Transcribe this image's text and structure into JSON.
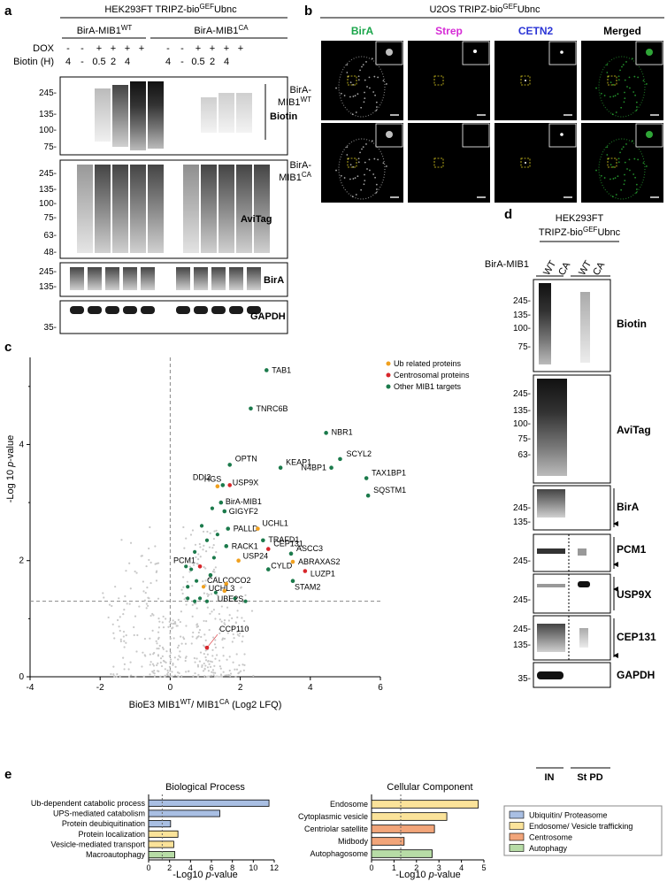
{
  "panels": {
    "a": {
      "letter": "a",
      "title_main": "HEK293FT TRIPZ-bio",
      "title_sup": "GEF",
      "title_end": "Ubnc",
      "group_wt_main": "BirA-MIB1",
      "group_wt_sup": "WT",
      "group_ca_main": "BirA-MIB1",
      "group_ca_sup": "CA",
      "row_dox_label": "DOX",
      "row_biotin_label": "Biotin (H)",
      "dox_values": [
        "-",
        "-",
        "+",
        "+",
        "+",
        "+",
        "-",
        "-",
        "+",
        "+",
        "+",
        "+"
      ],
      "biotin_values": [
        "4",
        "-",
        "0.5",
        "2",
        "4",
        "",
        "4",
        "-",
        "0.5",
        "2",
        "4",
        ""
      ],
      "blots": [
        {
          "name": "Biotin",
          "ticks": [
            "245-",
            "135-",
            "100-",
            "75-"
          ]
        },
        {
          "name": "AviTag",
          "ticks": [
            "245-",
            "135-",
            "100-",
            "75-",
            "63-",
            "48-"
          ]
        },
        {
          "name": "BirA",
          "ticks": [
            "245-",
            "135-"
          ]
        },
        {
          "name": "GAPDH",
          "ticks": [
            "35-"
          ]
        }
      ]
    },
    "b": {
      "letter": "b",
      "title_main": "U2OS TRIPZ-bio",
      "title_sup": "GEF",
      "title_end": "Ubnc",
      "channels": [
        {
          "name": "BirA",
          "color": "#1aa54a"
        },
        {
          "name": "Strep",
          "color": "#d62bd6"
        },
        {
          "name": "CETN2",
          "color": "#2b35d6"
        },
        {
          "name": "Merged",
          "color": "#000000"
        }
      ],
      "row_wt_main": "BirA-",
      "row_wt_sub": "MIB1",
      "row_wt_sup": "WT",
      "row_ca_main": "BirA-",
      "row_ca_sub": "MIB1",
      "row_ca_sup": "CA"
    },
    "c": {
      "letter": "c",
      "ylabel_main": "-Log 10 ",
      "ylabel_ital": "p",
      "ylabel_end": "-value",
      "xlabel_main": "BioE3 MIB1",
      "xlabel_sup1": "WT",
      "xlabel_mid": "/ MIB1",
      "xlabel_sup2": "CA",
      "xlabel_end": " (Log2 LFQ)",
      "legend": [
        {
          "label": "Ub related proteins",
          "color": "#f0a01e"
        },
        {
          "label": "Centrosomal proteins",
          "color": "#d8262b"
        },
        {
          "label": "Other MIB1 targets",
          "color": "#1b7a4b"
        }
      ]
    },
    "d": {
      "letter": "d",
      "title_line1": "HEK293FT",
      "title_main": "TRIPZ-bio",
      "title_sup": "GEF",
      "title_end": "Ubnc",
      "bira_label": "BirA-MIB1",
      "lane_labels": [
        "WT",
        "CA",
        "WT",
        "CA"
      ],
      "bottom_labels": [
        "IN",
        "St PD"
      ],
      "blots": [
        {
          "name": "Biotin",
          "ticks": [
            "245-",
            "135-",
            "100-",
            "75-"
          ]
        },
        {
          "name": "AviTag",
          "ticks": [
            "245-",
            "135-",
            "100-",
            "75-",
            "63-"
          ]
        },
        {
          "name": "BirA",
          "ticks": [
            "245-",
            "135-"
          ]
        },
        {
          "name": "PCM1",
          "ticks": [
            "245-"
          ]
        },
        {
          "name": "USP9X",
          "ticks": [
            "245-"
          ]
        },
        {
          "name": "CEP131",
          "ticks": [
            "245-",
            "135-"
          ]
        },
        {
          "name": "GAPDH",
          "ticks": [
            "35-"
          ]
        }
      ]
    },
    "e": {
      "letter": "e",
      "bp_title": "Biological Process",
      "cc_title": "Cellular Component",
      "xlabel_main": "-Log10 ",
      "xlabel_ital": "p",
      "xlabel_end": "-value",
      "legend": [
        {
          "label": "Ubiquitin/ Proteasome",
          "color": "#a9bfe3"
        },
        {
          "label": "Endosome/ Vesicle trafficking",
          "color": "#fbe39a"
        },
        {
          "label": "Centrosome",
          "color": "#f2a57a"
        },
        {
          "label": "Autophagy",
          "color": "#b7dca6"
        }
      ]
    }
  },
  "chart_data": [
    {
      "type": "scatter",
      "panel": "c",
      "xlim": [
        -4,
        6
      ],
      "ylim": [
        0,
        5.5
      ],
      "x_ticks": [
        "-4",
        "-2",
        "0",
        "2",
        "4",
        "6"
      ],
      "y_ticks": [
        "0",
        "2",
        "4"
      ],
      "threshold_y": 1.3,
      "vline_x": 0,
      "labeled_points": [
        {
          "label": "TAB1",
          "x": 2.75,
          "y": 5.28,
          "color": "#1b7a4b"
        },
        {
          "label": "TNRC6B",
          "x": 2.3,
          "y": 4.62,
          "color": "#1b7a4b"
        },
        {
          "label": "NBR1",
          "x": 4.45,
          "y": 4.2,
          "color": "#1b7a4b"
        },
        {
          "label": "KEAP1",
          "x": 3.15,
          "y": 3.6,
          "color": "#1b7a4b"
        },
        {
          "label": "SCYL2",
          "x": 4.85,
          "y": 3.75,
          "color": "#1b7a4b"
        },
        {
          "label": "N4BP1",
          "x": 4.6,
          "y": 3.6,
          "color": "#1b7a4b"
        },
        {
          "label": "TAX1BP1",
          "x": 5.6,
          "y": 3.42,
          "color": "#1b7a4b"
        },
        {
          "label": "SQSTM1",
          "x": 5.65,
          "y": 3.12,
          "color": "#1b7a4b"
        },
        {
          "label": "OPTN",
          "x": 1.7,
          "y": 3.65,
          "color": "#1b7a4b"
        },
        {
          "label": "HGS",
          "x": 1.5,
          "y": 3.3,
          "color": "#1b7a4b"
        },
        {
          "label": "USP9X",
          "x": 1.7,
          "y": 3.3,
          "color": "#d8262b"
        },
        {
          "label": "DDI2",
          "x": 1.35,
          "y": 3.28,
          "color": "#f0a01e"
        },
        {
          "label": "BirA-MIB1",
          "x": 1.45,
          "y": 3.0,
          "color": "#1b7a4b"
        },
        {
          "label": "GIGYF2",
          "x": 1.55,
          "y": 2.85,
          "color": "#1b7a4b"
        },
        {
          "label": "PALLD",
          "x": 1.65,
          "y": 2.55,
          "color": "#1b7a4b"
        },
        {
          "label": "UCHL1",
          "x": 2.5,
          "y": 2.55,
          "color": "#f0a01e"
        },
        {
          "label": "TRAFD1",
          "x": 2.65,
          "y": 2.35,
          "color": "#1b7a4b"
        },
        {
          "label": "CEP131",
          "x": 2.8,
          "y": 2.2,
          "color": "#d8262b"
        },
        {
          "label": "RACK1",
          "x": 1.6,
          "y": 2.25,
          "color": "#1b7a4b"
        },
        {
          "label": "USP24",
          "x": 1.95,
          "y": 2.0,
          "color": "#f0a01e"
        },
        {
          "label": "PCM1",
          "x": 0.85,
          "y": 1.9,
          "color": "#d8262b"
        },
        {
          "label": "CALCOCO2",
          "x": 1.15,
          "y": 1.75,
          "color": "#1b7a4b"
        },
        {
          "label": "ASCC3",
          "x": 3.45,
          "y": 2.12,
          "color": "#1b7a4b"
        },
        {
          "label": "ABRAXAS2",
          "x": 3.5,
          "y": 1.98,
          "color": "#f0a01e"
        },
        {
          "label": "CYLD",
          "x": 2.8,
          "y": 1.85,
          "color": "#1b7a4b"
        },
        {
          "label": "LUZP1",
          "x": 3.85,
          "y": 1.82,
          "color": "#d8262b"
        },
        {
          "label": "STAM2",
          "x": 3.5,
          "y": 1.65,
          "color": "#1b7a4b"
        },
        {
          "label": "UCHL3",
          "x": 1.6,
          "y": 1.6,
          "color": "#f0a01e"
        },
        {
          "label": "UBE2S",
          "x": 1.55,
          "y": 1.48,
          "color": "#f0a01e"
        },
        {
          "label": "CCP110",
          "x": 1.05,
          "y": 0.5,
          "color": "#d8262b"
        }
      ],
      "unlabeled_sig_points": [
        {
          "x": 0.7,
          "y": 2.15,
          "color": "#1b7a4b"
        },
        {
          "x": 0.9,
          "y": 2.6,
          "color": "#1b7a4b"
        },
        {
          "x": 1.05,
          "y": 2.35,
          "color": "#1b7a4b"
        },
        {
          "x": 1.25,
          "y": 2.05,
          "color": "#1b7a4b"
        },
        {
          "x": 0.6,
          "y": 1.85,
          "color": "#1b7a4b"
        },
        {
          "x": 0.45,
          "y": 1.9,
          "color": "#1b7a4b"
        },
        {
          "x": 0.75,
          "y": 1.65,
          "color": "#1b7a4b"
        },
        {
          "x": 0.95,
          "y": 1.55,
          "color": "#f0a01e"
        },
        {
          "x": 0.5,
          "y": 1.55,
          "color": "#1b7a4b"
        },
        {
          "x": 0.5,
          "y": 1.35,
          "color": "#1b7a4b"
        },
        {
          "x": 0.85,
          "y": 1.35,
          "color": "#1b7a4b"
        },
        {
          "x": 1.05,
          "y": 1.3,
          "color": "#1b7a4b"
        },
        {
          "x": 1.3,
          "y": 1.45,
          "color": "#1b7a4b"
        },
        {
          "x": 1.85,
          "y": 1.35,
          "color": "#1b7a4b"
        },
        {
          "x": 2.15,
          "y": 1.3,
          "color": "#1b7a4b"
        },
        {
          "x": 0.7,
          "y": 1.3,
          "color": "#1b7a4b"
        },
        {
          "x": 1.2,
          "y": 2.9,
          "color": "#1b7a4b"
        },
        {
          "x": 1.35,
          "y": 2.45,
          "color": "#1b7a4b"
        }
      ]
    },
    {
      "type": "bar",
      "panel": "e-biological-process",
      "categories": [
        "Ub-dependent catabolic process",
        "UPS-mediated catabolism",
        "Protein deubiquitination",
        "Protein localization",
        "Vesicle-mediated transport",
        "Macroautophagy"
      ],
      "values": [
        11.5,
        6.8,
        2.1,
        2.8,
        2.4,
        2.5
      ],
      "groups": [
        "Ubiquitin/ Proteasome",
        "Ubiquitin/ Proteasome",
        "Ubiquitin/ Proteasome",
        "Endosome/ Vesicle trafficking",
        "Endosome/ Vesicle trafficking",
        "Autophagy"
      ],
      "xlim": [
        0,
        12
      ],
      "x_ticks": [
        "0",
        "2",
        "4",
        "6",
        "8",
        "10",
        "12"
      ],
      "threshold_x": 1.3
    },
    {
      "type": "bar",
      "panel": "e-cellular-component",
      "categories": [
        "Endosome",
        "Cytoplasmic vesicle",
        "Centriolar satellite",
        "Midbody",
        "Autophagosome"
      ],
      "values": [
        4.75,
        3.35,
        2.8,
        1.45,
        2.7
      ],
      "groups": [
        "Endosome/ Vesicle trafficking",
        "Endosome/ Vesicle trafficking",
        "Centrosome",
        "Centrosome",
        "Autophagy"
      ],
      "xlim": [
        0,
        5
      ],
      "x_ticks": [
        "0",
        "1",
        "2",
        "3",
        "4",
        "5"
      ],
      "threshold_x": 1.3
    }
  ]
}
